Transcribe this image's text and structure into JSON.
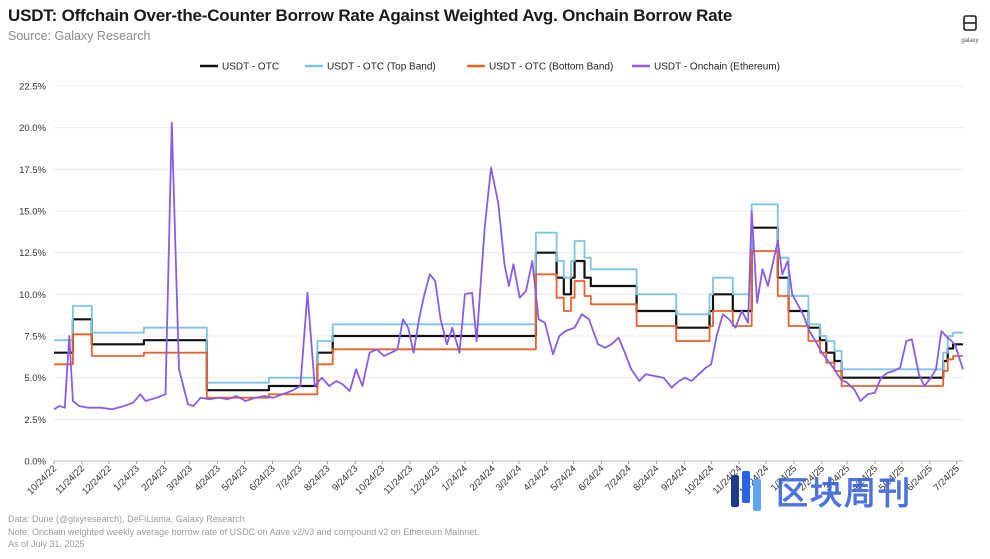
{
  "header": {
    "title": "USDT: Offchain Over-the-Counter Borrow Rate Against Weighted Avg. Onchain Borrow Rate",
    "subtitle": "Source: Galaxy Research",
    "logo_label": "galaxy"
  },
  "footer": {
    "lines": [
      "Data: Dune (@glxyresearch), DeFiLlama, Galaxy Research",
      "Note: Onchain weighted weekly average borrow rate of USDC on Aave v2/v3 and compound v2 on Ethereum Mainnet.",
      "As of July 31, 2025"
    ],
    "watermark_text": "区块周刊"
  },
  "chart_data": {
    "type": "line",
    "legend_position": "top",
    "grid": "horizontal",
    "ylim": [
      0,
      22.5
    ],
    "yticks": [
      "0.0%",
      "2.5%",
      "5.0%",
      "7.5%",
      "10.0%",
      "12.5%",
      "15.0%",
      "17.5%",
      "20.0%",
      "22.5%"
    ],
    "xlim": [
      "2022-10-24",
      "2025-07-31"
    ],
    "xticks": [
      {
        "date": "2022-10-24",
        "label": "10/24/22"
      },
      {
        "date": "2022-11-24",
        "label": "11/24/22"
      },
      {
        "date": "2022-12-24",
        "label": "12/24/22"
      },
      {
        "date": "2023-01-24",
        "label": "1/24/23"
      },
      {
        "date": "2023-02-24",
        "label": "2/24/23"
      },
      {
        "date": "2023-03-24",
        "label": "3/24/23"
      },
      {
        "date": "2023-04-24",
        "label": "4/24/23"
      },
      {
        "date": "2023-05-24",
        "label": "5/24/23"
      },
      {
        "date": "2023-06-24",
        "label": "6/24/23"
      },
      {
        "date": "2023-07-24",
        "label": "7/24/23"
      },
      {
        "date": "2023-08-24",
        "label": "8/24/23"
      },
      {
        "date": "2023-09-24",
        "label": "9/24/23"
      },
      {
        "date": "2023-10-24",
        "label": "10/24/23"
      },
      {
        "date": "2023-11-24",
        "label": "11/24/23"
      },
      {
        "date": "2023-12-24",
        "label": "12/24/23"
      },
      {
        "date": "2024-01-24",
        "label": "1/24/24"
      },
      {
        "date": "2024-02-24",
        "label": "2/24/24"
      },
      {
        "date": "2024-03-24",
        "label": "3/24/24"
      },
      {
        "date": "2024-04-24",
        "label": "4/24/24"
      },
      {
        "date": "2024-05-24",
        "label": "5/24/24"
      },
      {
        "date": "2024-06-24",
        "label": "6/24/24"
      },
      {
        "date": "2024-07-24",
        "label": "7/24/24"
      },
      {
        "date": "2024-08-24",
        "label": "8/24/24"
      },
      {
        "date": "2024-09-24",
        "label": "9/24/24"
      },
      {
        "date": "2024-10-24",
        "label": "10/24/24"
      },
      {
        "date": "2024-11-24",
        "label": "11/24/24"
      },
      {
        "date": "2024-12-24",
        "label": "12/24/24"
      },
      {
        "date": "2025-01-24",
        "label": "1/24/25"
      },
      {
        "date": "2025-02-24",
        "label": "2/24/25"
      },
      {
        "date": "2025-03-24",
        "label": "3/24/25"
      },
      {
        "date": "2025-04-24",
        "label": "4/24/25"
      },
      {
        "date": "2025-05-24",
        "label": "5/24/25"
      },
      {
        "date": "2025-06-24",
        "label": "6/24/25"
      },
      {
        "date": "2025-07-24",
        "label": "7/24/25"
      }
    ],
    "series": [
      {
        "name": "USDT - OTC",
        "color": "#111111",
        "width": 2.2,
        "step": true,
        "points": [
          [
            "2022-10-24",
            6.5
          ],
          [
            "2022-11-14",
            8.5
          ],
          [
            "2022-12-05",
            7.0
          ],
          [
            "2023-02-01",
            7.25
          ],
          [
            "2023-04-12",
            4.25
          ],
          [
            "2023-06-20",
            4.5
          ],
          [
            "2023-08-13",
            6.5
          ],
          [
            "2023-08-30",
            7.5
          ],
          [
            "2024-04-12",
            12.5
          ],
          [
            "2024-05-05",
            11.0
          ],
          [
            "2024-05-13",
            10.0
          ],
          [
            "2024-05-21",
            11.0
          ],
          [
            "2024-05-25",
            12.0
          ],
          [
            "2024-06-05",
            11.0
          ],
          [
            "2024-06-12",
            10.5
          ],
          [
            "2024-08-02",
            9.0
          ],
          [
            "2024-09-15",
            8.0
          ],
          [
            "2024-10-22",
            9.0
          ],
          [
            "2024-10-26",
            10.0
          ],
          [
            "2024-11-17",
            9.0
          ],
          [
            "2024-12-08",
            14.0
          ],
          [
            "2025-01-06",
            11.0
          ],
          [
            "2025-01-18",
            9.0
          ],
          [
            "2025-02-09",
            8.0
          ],
          [
            "2025-02-22",
            7.25
          ],
          [
            "2025-03-01",
            6.5
          ],
          [
            "2025-03-10",
            6.0
          ],
          [
            "2025-03-18",
            5.0
          ],
          [
            "2025-07-09",
            6.0
          ],
          [
            "2025-07-14",
            6.75
          ],
          [
            "2025-07-20",
            7.0
          ],
          [
            "2025-07-31",
            7.0
          ]
        ]
      },
      {
        "name": "USDT - OTC (Top Band)",
        "color": "#7cc4e6",
        "width": 1.8,
        "step": true,
        "points": [
          [
            "2022-10-24",
            7.25
          ],
          [
            "2022-11-14",
            9.3
          ],
          [
            "2022-12-05",
            7.7
          ],
          [
            "2023-02-01",
            8.0
          ],
          [
            "2023-04-12",
            4.7
          ],
          [
            "2023-06-20",
            5.0
          ],
          [
            "2023-08-13",
            7.2
          ],
          [
            "2023-08-30",
            8.2
          ],
          [
            "2024-04-12",
            13.7
          ],
          [
            "2024-05-05",
            12.0
          ],
          [
            "2024-05-13",
            11.0
          ],
          [
            "2024-05-21",
            12.0
          ],
          [
            "2024-05-25",
            13.2
          ],
          [
            "2024-06-05",
            12.2
          ],
          [
            "2024-06-12",
            11.5
          ],
          [
            "2024-08-02",
            10.0
          ],
          [
            "2024-09-15",
            8.8
          ],
          [
            "2024-10-22",
            10.0
          ],
          [
            "2024-10-26",
            11.0
          ],
          [
            "2024-11-17",
            10.0
          ],
          [
            "2024-12-08",
            15.4
          ],
          [
            "2025-01-06",
            12.2
          ],
          [
            "2025-01-18",
            9.9
          ],
          [
            "2025-02-09",
            8.2
          ],
          [
            "2025-02-22",
            7.5
          ],
          [
            "2025-03-01",
            7.2
          ],
          [
            "2025-03-10",
            6.6
          ],
          [
            "2025-03-18",
            5.5
          ],
          [
            "2025-07-09",
            6.5
          ],
          [
            "2025-07-14",
            7.5
          ],
          [
            "2025-07-20",
            7.7
          ],
          [
            "2025-07-31",
            7.7
          ]
        ]
      },
      {
        "name": "USDT - OTC (Bottom Band)",
        "color": "#e8622c",
        "width": 1.8,
        "step": true,
        "points": [
          [
            "2022-10-24",
            5.8
          ],
          [
            "2022-11-14",
            7.6
          ],
          [
            "2022-12-05",
            6.3
          ],
          [
            "2023-02-01",
            6.5
          ],
          [
            "2023-04-12",
            3.8
          ],
          [
            "2023-06-20",
            4.0
          ],
          [
            "2023-08-13",
            5.8
          ],
          [
            "2023-08-30",
            6.7
          ],
          [
            "2024-04-12",
            11.2
          ],
          [
            "2024-05-05",
            9.8
          ],
          [
            "2024-05-13",
            9.0
          ],
          [
            "2024-05-21",
            9.8
          ],
          [
            "2024-05-25",
            10.8
          ],
          [
            "2024-06-05",
            9.9
          ],
          [
            "2024-06-12",
            9.4
          ],
          [
            "2024-08-02",
            8.1
          ],
          [
            "2024-09-15",
            7.2
          ],
          [
            "2024-10-22",
            8.1
          ],
          [
            "2024-10-26",
            9.0
          ],
          [
            "2024-11-17",
            8.1
          ],
          [
            "2024-12-08",
            12.6
          ],
          [
            "2025-01-06",
            9.9
          ],
          [
            "2025-01-18",
            8.1
          ],
          [
            "2025-02-09",
            7.2
          ],
          [
            "2025-02-22",
            6.5
          ],
          [
            "2025-03-01",
            5.9
          ],
          [
            "2025-03-10",
            5.4
          ],
          [
            "2025-03-18",
            4.5
          ],
          [
            "2025-07-09",
            5.4
          ],
          [
            "2025-07-14",
            6.1
          ],
          [
            "2025-07-20",
            6.3
          ],
          [
            "2025-07-31",
            6.3
          ]
        ]
      },
      {
        "name": "USDT - Onchain (Ethereum)",
        "color": "#8a5ce6",
        "width": 1.8,
        "step": false,
        "points": [
          [
            "2022-10-24",
            3.1
          ],
          [
            "2022-10-30",
            3.3
          ],
          [
            "2022-11-05",
            3.2
          ],
          [
            "2022-11-10",
            7.5
          ],
          [
            "2022-11-14",
            3.6
          ],
          [
            "2022-11-21",
            3.3
          ],
          [
            "2022-12-01",
            3.2
          ],
          [
            "2022-12-15",
            3.2
          ],
          [
            "2022-12-28",
            3.1
          ],
          [
            "2023-01-10",
            3.3
          ],
          [
            "2023-01-20",
            3.5
          ],
          [
            "2023-01-28",
            4.0
          ],
          [
            "2023-02-03",
            3.6
          ],
          [
            "2023-02-15",
            3.8
          ],
          [
            "2023-02-25",
            4.0
          ],
          [
            "2023-03-04",
            20.3
          ],
          [
            "2023-03-12",
            5.5
          ],
          [
            "2023-03-22",
            3.4
          ],
          [
            "2023-03-28",
            3.3
          ],
          [
            "2023-04-05",
            3.8
          ],
          [
            "2023-04-15",
            3.7
          ],
          [
            "2023-04-25",
            3.8
          ],
          [
            "2023-05-05",
            3.7
          ],
          [
            "2023-05-15",
            3.9
          ],
          [
            "2023-05-25",
            3.6
          ],
          [
            "2023-06-05",
            3.8
          ],
          [
            "2023-06-15",
            3.9
          ],
          [
            "2023-06-25",
            3.8
          ],
          [
            "2023-07-05",
            4.0
          ],
          [
            "2023-07-15",
            4.2
          ],
          [
            "2023-07-25",
            4.5
          ],
          [
            "2023-08-02",
            10.1
          ],
          [
            "2023-08-10",
            4.5
          ],
          [
            "2023-08-18",
            5.0
          ],
          [
            "2023-08-26",
            4.5
          ],
          [
            "2023-09-03",
            4.8
          ],
          [
            "2023-09-10",
            4.6
          ],
          [
            "2023-09-18",
            4.2
          ],
          [
            "2023-09-25",
            5.5
          ],
          [
            "2023-10-02",
            4.5
          ],
          [
            "2023-10-10",
            6.5
          ],
          [
            "2023-10-18",
            6.7
          ],
          [
            "2023-10-26",
            6.3
          ],
          [
            "2023-11-03",
            6.5
          ],
          [
            "2023-11-10",
            6.7
          ],
          [
            "2023-11-16",
            8.5
          ],
          [
            "2023-11-22",
            8.0
          ],
          [
            "2023-11-28",
            6.5
          ],
          [
            "2023-12-04",
            8.5
          ],
          [
            "2023-12-10",
            10.0
          ],
          [
            "2023-12-16",
            11.2
          ],
          [
            "2023-12-22",
            10.8
          ],
          [
            "2023-12-28",
            8.5
          ],
          [
            "2024-01-04",
            7.0
          ],
          [
            "2024-01-10",
            8.0
          ],
          [
            "2024-01-18",
            6.5
          ],
          [
            "2024-01-24",
            10.0
          ],
          [
            "2024-02-01",
            10.1
          ],
          [
            "2024-02-06",
            7.2
          ],
          [
            "2024-02-15",
            14.0
          ],
          [
            "2024-02-22",
            17.6
          ],
          [
            "2024-03-01",
            15.5
          ],
          [
            "2024-03-08",
            11.8
          ],
          [
            "2024-03-13",
            10.5
          ],
          [
            "2024-03-18",
            11.8
          ],
          [
            "2024-03-25",
            9.8
          ],
          [
            "2024-04-01",
            10.2
          ],
          [
            "2024-04-08",
            12.0
          ],
          [
            "2024-04-15",
            8.5
          ],
          [
            "2024-04-22",
            8.3
          ],
          [
            "2024-05-01",
            6.4
          ],
          [
            "2024-05-08",
            7.5
          ],
          [
            "2024-05-15",
            7.8
          ],
          [
            "2024-05-25",
            8.0
          ],
          [
            "2024-06-02",
            8.8
          ],
          [
            "2024-06-10",
            8.5
          ],
          [
            "2024-06-20",
            7.0
          ],
          [
            "2024-06-28",
            6.8
          ],
          [
            "2024-07-05",
            7.0
          ],
          [
            "2024-07-13",
            7.4
          ],
          [
            "2024-07-20",
            6.5
          ],
          [
            "2024-07-27",
            5.5
          ],
          [
            "2024-08-05",
            4.8
          ],
          [
            "2024-08-12",
            5.2
          ],
          [
            "2024-08-22",
            5.1
          ],
          [
            "2024-09-01",
            5.0
          ],
          [
            "2024-09-10",
            4.4
          ],
          [
            "2024-09-18",
            4.8
          ],
          [
            "2024-09-25",
            5.0
          ],
          [
            "2024-10-02",
            4.8
          ],
          [
            "2024-10-10",
            5.2
          ],
          [
            "2024-10-18",
            5.6
          ],
          [
            "2024-10-24",
            5.8
          ],
          [
            "2024-10-30",
            7.5
          ],
          [
            "2024-11-06",
            8.8
          ],
          [
            "2024-11-13",
            8.5
          ],
          [
            "2024-11-20",
            8.0
          ],
          [
            "2024-11-27",
            9.0
          ],
          [
            "2024-12-04",
            8.3
          ],
          [
            "2024-12-08",
            15.0
          ],
          [
            "2024-12-14",
            9.5
          ],
          [
            "2024-12-20",
            11.5
          ],
          [
            "2024-12-26",
            10.5
          ],
          [
            "2025-01-01",
            12.0
          ],
          [
            "2025-01-06",
            13.2
          ],
          [
            "2025-01-11",
            11.2
          ],
          [
            "2025-01-17",
            12.0
          ],
          [
            "2025-01-22",
            10.0
          ],
          [
            "2025-01-27",
            9.5
          ],
          [
            "2025-02-03",
            8.8
          ],
          [
            "2025-02-10",
            7.8
          ],
          [
            "2025-02-17",
            7.2
          ],
          [
            "2025-02-24",
            6.5
          ],
          [
            "2025-03-03",
            6.0
          ],
          [
            "2025-03-10",
            5.5
          ],
          [
            "2025-03-17",
            4.9
          ],
          [
            "2025-03-24",
            4.7
          ],
          [
            "2025-04-01",
            4.3
          ],
          [
            "2025-04-08",
            3.6
          ],
          [
            "2025-04-16",
            4.0
          ],
          [
            "2025-04-24",
            4.1
          ],
          [
            "2025-05-01",
            5.0
          ],
          [
            "2025-05-08",
            5.3
          ],
          [
            "2025-05-15",
            5.4
          ],
          [
            "2025-05-22",
            5.6
          ],
          [
            "2025-05-29",
            7.2
          ],
          [
            "2025-06-04",
            7.3
          ],
          [
            "2025-06-12",
            5.2
          ],
          [
            "2025-06-18",
            4.5
          ],
          [
            "2025-06-24",
            4.9
          ],
          [
            "2025-07-01",
            5.5
          ],
          [
            "2025-07-07",
            7.8
          ],
          [
            "2025-07-14",
            7.4
          ],
          [
            "2025-07-22",
            7.0
          ],
          [
            "2025-07-31",
            5.5
          ]
        ]
      }
    ]
  }
}
